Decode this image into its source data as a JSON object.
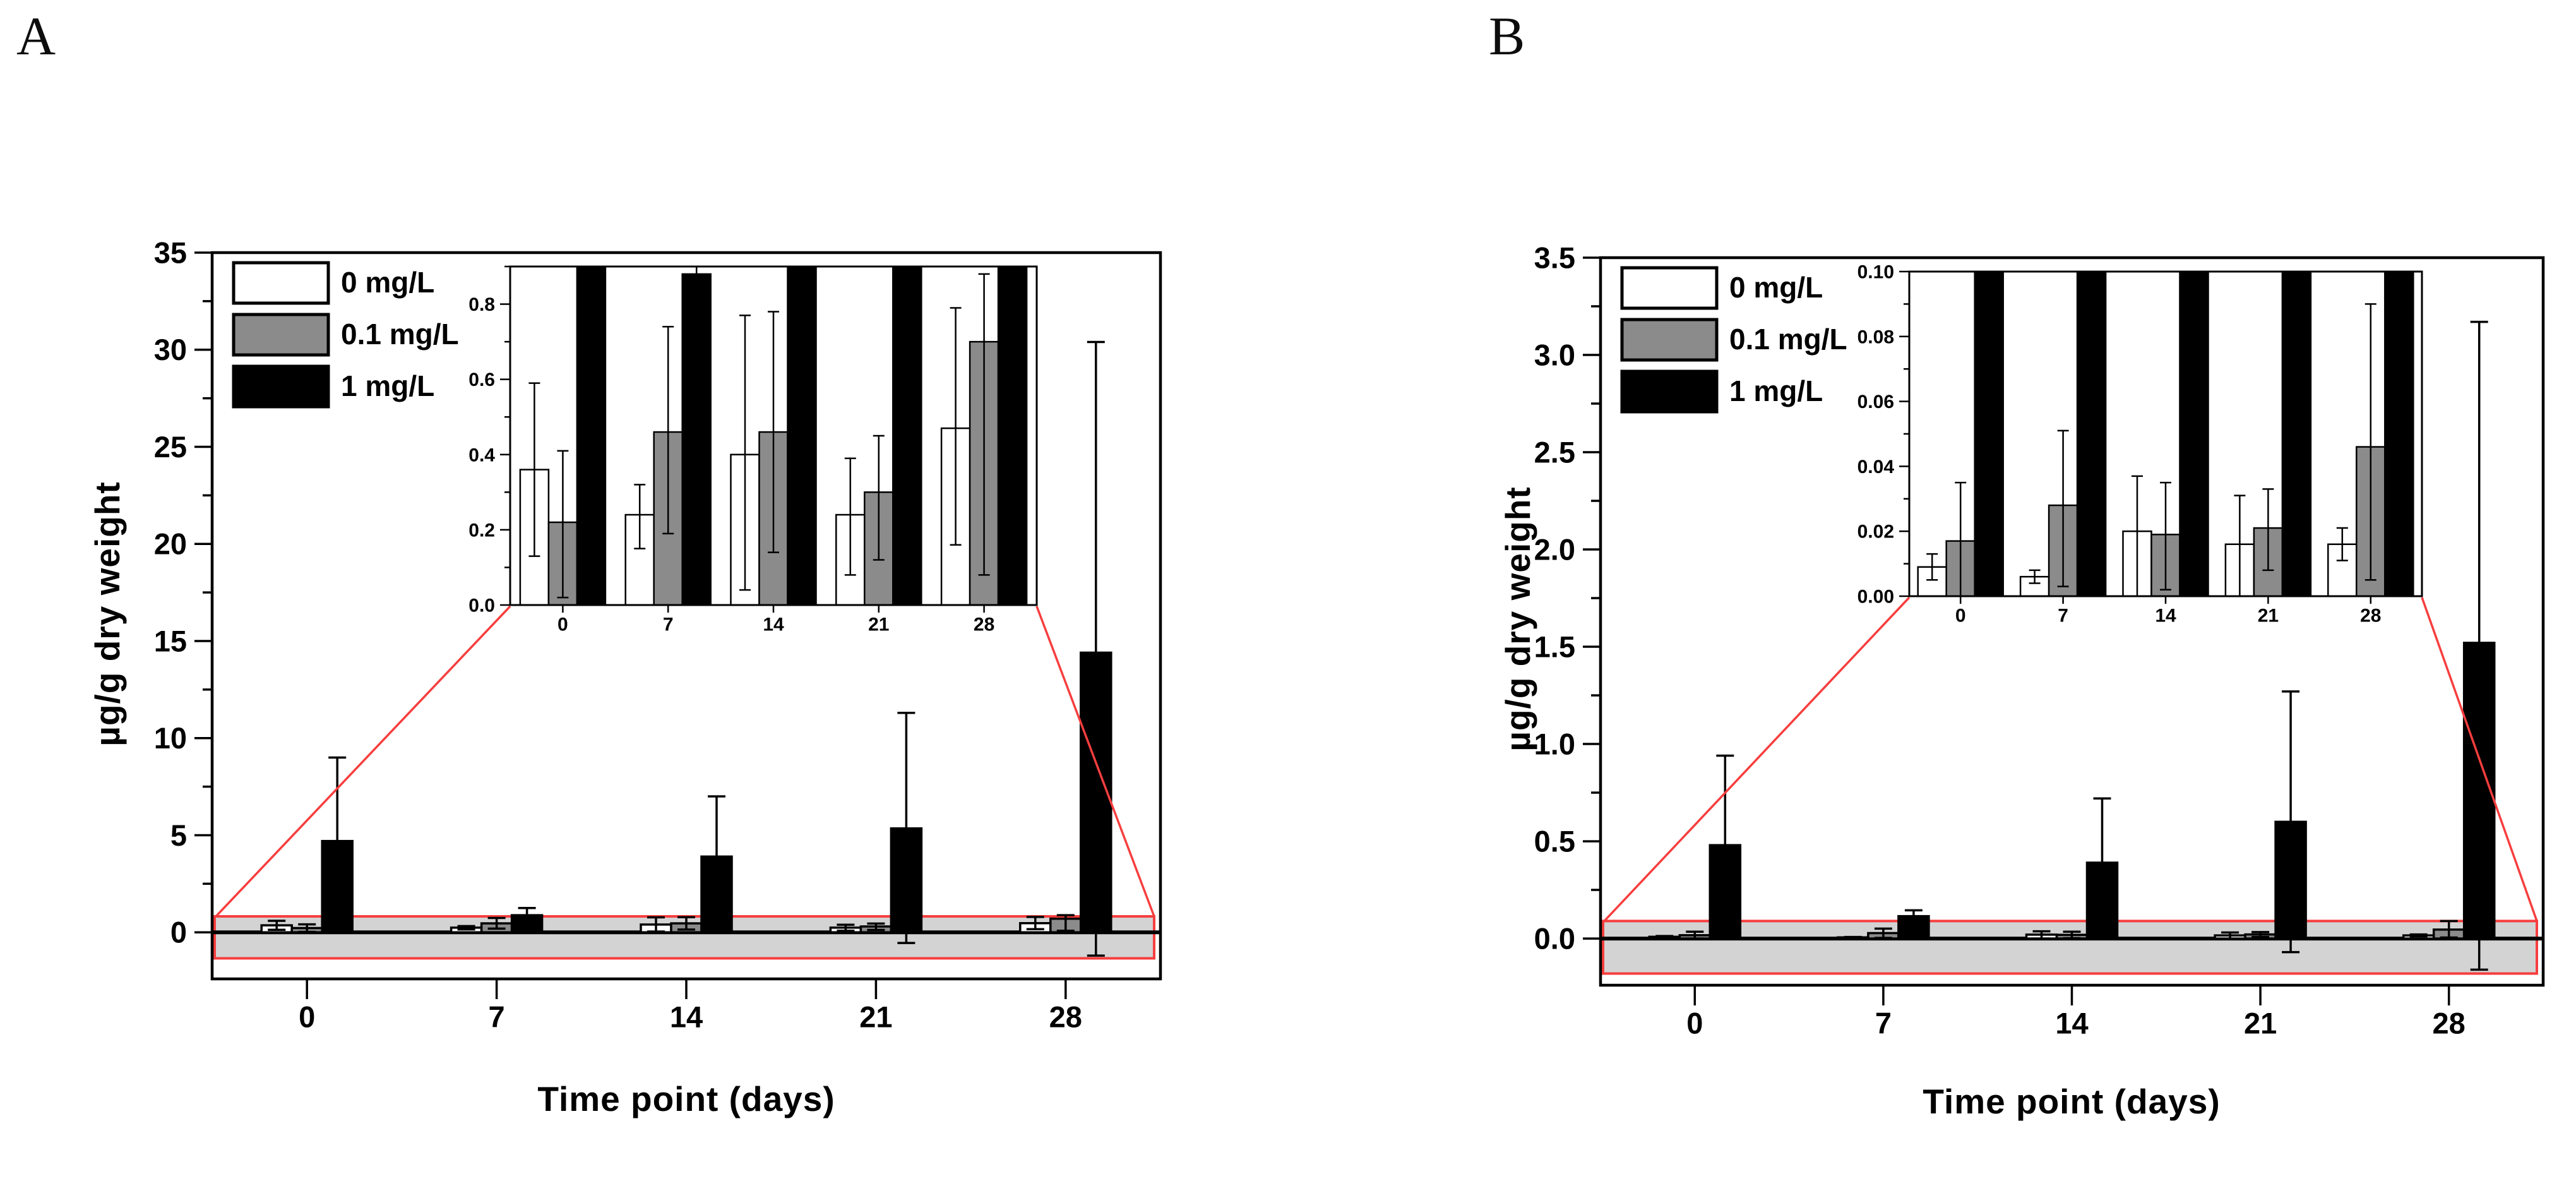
{
  "colors": {
    "background": "#ffffff",
    "axis": "#000000",
    "zoom_red": "#f73e3e",
    "band_fill": "#d3d3d3",
    "bar_colors": [
      "#ffffff",
      "#8b8b8b",
      "#000000"
    ]
  },
  "chart_data": [
    {
      "id": "panel-A",
      "type": "bar",
      "label": "A",
      "xlabel": "Time point (days)",
      "ylabel": "µg/g dry weight",
      "categories": [
        "0",
        "7",
        "14",
        "21",
        "28"
      ],
      "legend": [
        "0 mg/L",
        "0.1 mg/L",
        "1 mg/L"
      ],
      "legend_position": "top-left-inside",
      "main": {
        "ylim": [
          -2.4,
          35
        ],
        "ytick_step": 5,
        "ytick_minor": 2.5,
        "ytick_decimals": 0,
        "grid": false,
        "zoom_band": {
          "y0": -1.34,
          "y1": 0.82
        },
        "series": [
          {
            "name": "0 mg/L",
            "values": [
              0.36,
              0.24,
              0.4,
              0.24,
              0.47
            ],
            "err_lo": [
              0.13,
              0.15,
              0.04,
              0.08,
              0.16
            ],
            "err_hi": [
              0.59,
              0.32,
              0.77,
              0.39,
              0.79
            ]
          },
          {
            "name": "0.1 mg/L",
            "values": [
              0.22,
              0.46,
              0.46,
              0.3,
              0.7
            ],
            "err_lo": [
              0.02,
              0.19,
              0.14,
              0.12,
              0.08
            ],
            "err_hi": [
              0.41,
              0.74,
              0.78,
              0.45,
              0.88
            ]
          },
          {
            "name": "1 mg/L",
            "values": [
              4.7,
              0.88,
              3.9,
              5.35,
              14.4
            ],
            "err_lo": [
              null,
              null,
              null,
              -0.55,
              -1.2
            ],
            "err_hi": [
              9.0,
              1.25,
              7.0,
              11.3,
              30.4
            ]
          }
        ]
      },
      "inset": {
        "ylim": [
          0,
          0.9
        ],
        "ytick_step": 0.2,
        "ytick_minor": 0.1,
        "ytick_decimals": 1
      }
    },
    {
      "id": "panel-B",
      "type": "bar",
      "label": "B",
      "xlabel": "Time point (days)",
      "ylabel": "µg/g dry weight",
      "categories": [
        "0",
        "7",
        "14",
        "21",
        "28"
      ],
      "legend": [
        "0 mg/L",
        "0.1 mg/L",
        "1 mg/L"
      ],
      "legend_position": "top-left-inside",
      "main": {
        "ylim": [
          -0.24,
          3.5
        ],
        "ytick_step": 0.5,
        "ytick_minor": 0.25,
        "ytick_decimals": 1,
        "grid": false,
        "zoom_band": {
          "y0": -0.18,
          "y1": 0.09
        },
        "series": [
          {
            "name": "0 mg/L",
            "values": [
              0.009,
              0.006,
              0.02,
              0.016,
              0.016
            ],
            "err_lo": [
              0.005,
              0.004,
              0.0,
              -0.001,
              0.011
            ],
            "err_hi": [
              0.013,
              0.008,
              0.037,
              0.031,
              0.021
            ]
          },
          {
            "name": "0.1 mg/L",
            "values": [
              0.017,
              0.028,
              0.019,
              0.021,
              0.046
            ],
            "err_lo": [
              0.0,
              0.003,
              0.002,
              0.008,
              0.005
            ],
            "err_hi": [
              0.035,
              0.051,
              0.035,
              0.033,
              0.09
            ]
          },
          {
            "name": "1 mg/L",
            "values": [
              0.48,
              0.115,
              0.39,
              0.6,
              1.52
            ],
            "err_lo": [
              null,
              null,
              null,
              -0.07,
              -0.16
            ],
            "err_hi": [
              0.94,
              0.145,
              0.72,
              1.27,
              3.17
            ]
          }
        ]
      },
      "inset": {
        "ylim": [
          0,
          0.1
        ],
        "ytick_step": 0.02,
        "ytick_minor": 0.01,
        "ytick_decimals": 2
      }
    }
  ]
}
